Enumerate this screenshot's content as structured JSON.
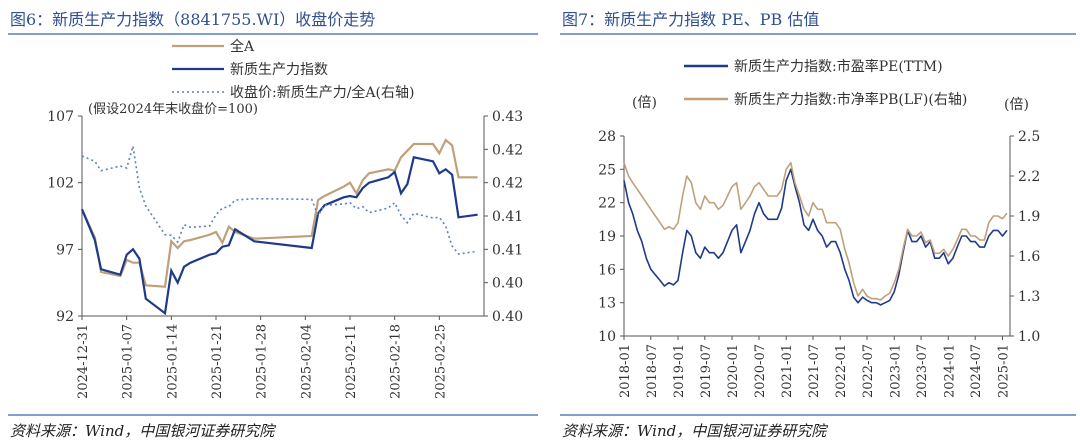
{
  "left": {
    "title": "图6：新质生产力指数（8841755.WI）收盘价走势",
    "source": "资料来源：Wind，中国银河证券研究院",
    "colors": {
      "all_a": "#c0a07a",
      "index": "#1e3a8a",
      "ratio": "#5b7ec7",
      "axis": "#555555"
    },
    "chart_data": {
      "type": "line",
      "title": "图6：新质生产力指数（8841755.WI）收盘价走势",
      "note": "(假设2024年末收盘价=100)",
      "x_ticks": [
        "2024-12-31",
        "2025-01-07",
        "2025-01-14",
        "2025-01-21",
        "2025-01-28",
        "2025-02-04",
        "2025-02-11",
        "2025-02-18",
        "2025-02-25"
      ],
      "y_left_ticks": [
        "107",
        "102",
        "97",
        "92"
      ],
      "y_right_ticks": [
        "0.43",
        "0.42",
        "0.42",
        "0.41",
        "0.41",
        "0.40",
        "0.40"
      ],
      "ylim_left": [
        92,
        107
      ],
      "ylim_right": [
        0.4,
        0.43
      ],
      "x": [
        "2024-12-31",
        "2025-01-02",
        "2025-01-03",
        "2025-01-06",
        "2025-01-07",
        "2025-01-08",
        "2025-01-09",
        "2025-01-10",
        "2025-01-13",
        "2025-01-14",
        "2025-01-15",
        "2025-01-16",
        "2025-01-17",
        "2025-01-20",
        "2025-01-21",
        "2025-01-22",
        "2025-01-23",
        "2025-01-24",
        "2025-01-27",
        "2025-02-05",
        "2025-02-06",
        "2025-02-07",
        "2025-02-10",
        "2025-02-11",
        "2025-02-12",
        "2025-02-13",
        "2025-02-14",
        "2025-02-17",
        "2025-02-18",
        "2025-02-19",
        "2025-02-20",
        "2025-02-21",
        "2025-02-24",
        "2025-02-25",
        "2025-02-26",
        "2025-02-27",
        "2025-02-28",
        "2025-03-03"
      ],
      "series": [
        {
          "name": "全A",
          "axis": "left",
          "values": [
            100,
            97.9,
            95.3,
            95.0,
            96.2,
            96.0,
            96.0,
            94.3,
            94.2,
            97.6,
            97.1,
            97.6,
            97.7,
            98.1,
            98.3,
            97.5,
            98.7,
            98.3,
            97.8,
            98.0,
            100.7,
            101.0,
            101.7,
            102.0,
            101.2,
            102.2,
            102.7,
            103.0,
            102.9,
            103.9,
            104.4,
            104.9,
            104.9,
            104.2,
            105.2,
            104.8,
            102.4,
            102.4
          ]
        },
        {
          "name": "新质生产力指数",
          "axis": "left",
          "values": [
            100,
            97.7,
            95.5,
            95.1,
            96.6,
            97.0,
            96.3,
            93.3,
            92.2,
            95.4,
            94.5,
            95.7,
            96.0,
            96.6,
            96.7,
            97.2,
            97.3,
            98.5,
            97.6,
            97.1,
            99.7,
            100.3,
            100.9,
            101.0,
            100.9,
            101.6,
            102.0,
            102.4,
            102.8,
            101.2,
            101.9,
            103.9,
            103.6,
            102.7,
            103.0,
            102.6,
            99.4,
            99.6
          ]
        },
        {
          "name": "收盘价:新质生产力/全A(右轴)",
          "axis": "right",
          "values": [
            0.424,
            0.4232,
            0.4218,
            0.4225,
            0.4222,
            0.4255,
            0.4192,
            0.4165,
            0.4122,
            0.4121,
            0.4111,
            0.4137,
            0.4133,
            0.4135,
            0.4152,
            0.4162,
            0.4164,
            0.4174,
            0.4176,
            0.4175,
            0.4151,
            0.4166,
            0.4168,
            0.417,
            0.4161,
            0.4164,
            0.4155,
            0.4162,
            0.417,
            0.4151,
            0.414,
            0.4154,
            0.4147,
            0.4148,
            0.4135,
            0.4105,
            0.4093,
            0.4097
          ]
        }
      ],
      "legend_position": "top"
    }
  },
  "right": {
    "title": "图7：新质生产力指数 PE、PB 估值",
    "source": "资料来源：Wind，中国银河证券研究院",
    "colors": {
      "pe": "#1e3a8a",
      "pb": "#c0a07a",
      "axis": "#555555"
    },
    "chart_data": {
      "type": "line",
      "ylabel_left": "(倍)",
      "ylabel_right": "(倍)",
      "x_ticks": [
        "2018-01",
        "2018-07",
        "2019-01",
        "2019-07",
        "2020-01",
        "2020-07",
        "2021-01",
        "2021-07",
        "2022-01",
        "2022-07",
        "2023-01",
        "2023-07",
        "2024-01",
        "2024-07",
        "2025-01"
      ],
      "y_left_ticks": [
        "28",
        "25",
        "22",
        "19",
        "16",
        "13",
        "10"
      ],
      "y_right_ticks": [
        "2.5",
        "2.2",
        "1.9",
        "1.6",
        "1.3",
        "1.0"
      ],
      "ylim_left": [
        10,
        28
      ],
      "ylim_right": [
        1.0,
        2.5
      ],
      "x": [
        "2018-01",
        "2018-02",
        "2018-03",
        "2018-04",
        "2018-05",
        "2018-06",
        "2018-07",
        "2018-08",
        "2018-09",
        "2018-10",
        "2018-11",
        "2018-12",
        "2019-01",
        "2019-02",
        "2019-03",
        "2019-04",
        "2019-05",
        "2019-06",
        "2019-07",
        "2019-08",
        "2019-09",
        "2019-10",
        "2019-11",
        "2019-12",
        "2020-01",
        "2020-02",
        "2020-03",
        "2020-04",
        "2020-05",
        "2020-06",
        "2020-07",
        "2020-08",
        "2020-09",
        "2020-10",
        "2020-11",
        "2020-12",
        "2021-01",
        "2021-02",
        "2021-03",
        "2021-04",
        "2021-05",
        "2021-06",
        "2021-07",
        "2021-08",
        "2021-09",
        "2021-10",
        "2021-11",
        "2021-12",
        "2022-01",
        "2022-02",
        "2022-03",
        "2022-04",
        "2022-05",
        "2022-06",
        "2022-07",
        "2022-08",
        "2022-09",
        "2022-10",
        "2022-11",
        "2022-12",
        "2023-01",
        "2023-02",
        "2023-03",
        "2023-04",
        "2023-05",
        "2023-06",
        "2023-07",
        "2023-08",
        "2023-09",
        "2023-10",
        "2023-11",
        "2023-12",
        "2024-01",
        "2024-02",
        "2024-03",
        "2024-04",
        "2024-05",
        "2024-06",
        "2024-07",
        "2024-08",
        "2024-09",
        "2024-10",
        "2024-11",
        "2024-12",
        "2025-01",
        "2025-02"
      ],
      "series": [
        {
          "name": "新质生产力指数:市盈率PE(TTM)",
          "axis": "left",
          "values": [
            24.0,
            22.0,
            21.0,
            19.5,
            18.5,
            17.0,
            16.0,
            15.5,
            15.0,
            14.5,
            14.8,
            14.6,
            15.0,
            17.5,
            19.5,
            19.0,
            17.5,
            17.0,
            18.0,
            17.5,
            17.5,
            17.0,
            17.5,
            18.5,
            19.5,
            20.0,
            17.5,
            18.5,
            19.5,
            21.0,
            22.0,
            21.0,
            20.5,
            20.5,
            20.5,
            21.5,
            24.0,
            25.0,
            23.5,
            22.0,
            20.0,
            19.5,
            20.5,
            19.5,
            19.0,
            18.0,
            18.5,
            18.5,
            17.5,
            16.0,
            15.0,
            13.5,
            13.0,
            13.5,
            13.2,
            13.0,
            13.0,
            12.8,
            13.0,
            13.2,
            14.0,
            15.5,
            17.5,
            19.5,
            18.5,
            18.5,
            19.0,
            18.0,
            18.5,
            17.0,
            17.0,
            17.5,
            16.5,
            17.0,
            18.0,
            19.0,
            19.0,
            18.5,
            18.5,
            18.0,
            18.0,
            19.0,
            19.5,
            19.5,
            19.0,
            19.5
          ]
        },
        {
          "name": "新质生产力指数:市净率PB(LF)(右轴)",
          "axis": "right",
          "values": [
            2.3,
            2.2,
            2.15,
            2.1,
            2.05,
            2.0,
            1.95,
            1.9,
            1.85,
            1.8,
            1.82,
            1.8,
            1.85,
            2.05,
            2.2,
            2.15,
            2.0,
            1.95,
            2.05,
            2.0,
            2.0,
            1.95,
            1.98,
            2.05,
            2.12,
            2.15,
            1.95,
            2.0,
            2.05,
            2.12,
            2.15,
            2.1,
            2.05,
            2.05,
            2.05,
            2.1,
            2.25,
            2.3,
            2.15,
            2.05,
            1.95,
            1.9,
            2.0,
            1.95,
            1.95,
            1.85,
            1.85,
            1.85,
            1.8,
            1.65,
            1.55,
            1.4,
            1.3,
            1.35,
            1.3,
            1.28,
            1.28,
            1.27,
            1.3,
            1.32,
            1.4,
            1.5,
            1.65,
            1.8,
            1.75,
            1.75,
            1.78,
            1.7,
            1.72,
            1.62,
            1.62,
            1.65,
            1.6,
            1.65,
            1.72,
            1.8,
            1.8,
            1.75,
            1.75,
            1.72,
            1.72,
            1.85,
            1.9,
            1.9,
            1.88,
            1.92
          ]
        }
      ],
      "legend_position": "top"
    }
  }
}
